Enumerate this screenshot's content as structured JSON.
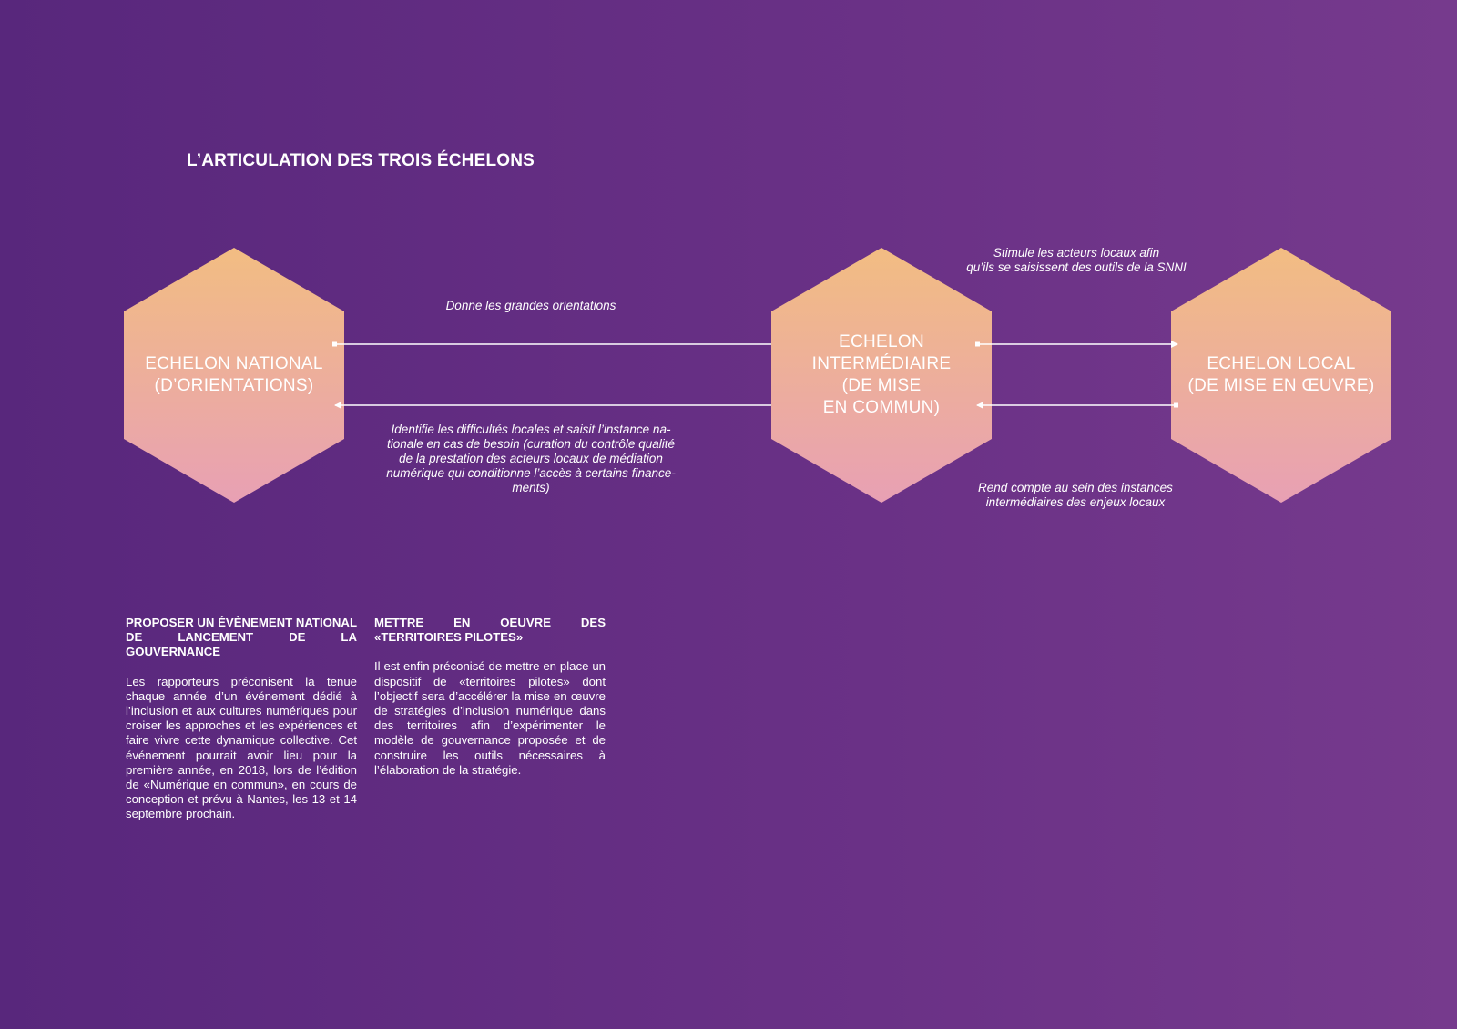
{
  "title": "L’ARTICULATION DES TROIS ÉCHELONS",
  "hexagons": [
    {
      "label": "ECHELON NATIONAL\n(D’ORIENTATIONS)"
    },
    {
      "label": "ECHELON\nINTERMÉDIAIRE\n(DE MISE\nEN COMMUN)"
    },
    {
      "label": "ECHELON LOCAL\n(DE MISE EN ŒUVRE)"
    }
  ],
  "captions": {
    "national_to_intermediate": "Donne les grandes orientations",
    "intermediate_to_national": "Identifie les difficultés locales et saisit l’instance na-\ntionale en cas de besoin (curation du contrôle qualité\nde la prestation des acteurs locaux de médiation\nnumérique qui conditionne l’accès à certains finance-\nments)",
    "intermediate_to_local": "Stimule les acteurs locaux afin\nqu’ils se saisissent des outils de la SNNI",
    "local_to_intermediate": "Rend compte au sein des instances\nintermédiaires des enjeux locaux"
  },
  "columns": [
    {
      "heading": "PROPOSER UN ÉVÈNEMENT NATIONAL DE LANCEMENT DE LA GOUVERNANCE",
      "body": "Les rapporteurs préconisent la tenue chaque année d’un événement dédié à l’inclusion et aux cultures numériques pour croiser les approches et les expériences et faire vivre cette dynamique collective. Cet événement pourrait avoir lieu pour la première année, en 2018, lors de l’édition de «Numérique en commun», en cours de conception et prévu à Nantes, les 13 et 14 septembre prochain."
    },
    {
      "heading": "METTRE EN OEUVRE DES «TERRITOIRES PILOTES»",
      "body": "Il est enfin préconisé de mettre en place un dispositif de «territoires pilotes» dont l’objectif sera d’accélérer la mise en œuvre de stratégies d’inclusion numérique dans des territoires afin d’expérimenter le modèle de gouvernance proposée et de construire les outils nécessaires à l’élaboration de la stratégie."
    }
  ],
  "colors": {
    "background_left": "#58277c",
    "background_right": "#763a8d",
    "hex_top": "#f2bd82",
    "hex_bottom": "#e8a0b4"
  }
}
